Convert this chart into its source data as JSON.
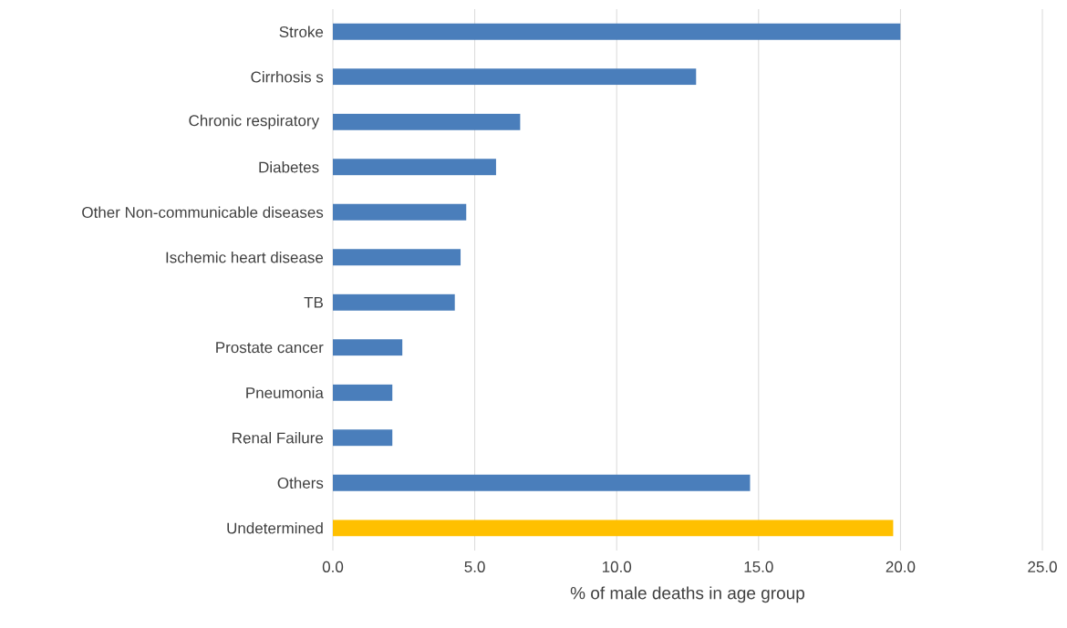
{
  "chart_data": {
    "type": "bar",
    "orientation": "horizontal",
    "xlabel": "% of male deaths in age group",
    "categories": [
      "Stroke",
      "Cirrhosis s",
      "Chronic respiratory ",
      "Diabetes ",
      "Other Non-communicable diseases",
      "Ischemic heart disease",
      "TB",
      "Prostate cancer",
      "Pneumonia",
      "Renal Failure",
      "Others",
      "Undetermined"
    ],
    "values": [
      20.0,
      12.8,
      6.6,
      5.75,
      4.7,
      4.5,
      4.3,
      2.45,
      2.1,
      2.1,
      14.7,
      19.75
    ],
    "colors": [
      "#4a7ebb",
      "#4a7ebb",
      "#4a7ebb",
      "#4a7ebb",
      "#4a7ebb",
      "#4a7ebb",
      "#4a7ebb",
      "#4a7ebb",
      "#4a7ebb",
      "#4a7ebb",
      "#4a7ebb",
      "#ffc000"
    ],
    "xlim": [
      0,
      25
    ],
    "xticks": [
      {
        "value": 0,
        "label": "0.0"
      },
      {
        "value": 5,
        "label": "5.0"
      },
      {
        "value": 10,
        "label": "10.0"
      },
      {
        "value": 15,
        "label": "15.0"
      },
      {
        "value": 20,
        "label": "20.0"
      },
      {
        "value": 25,
        "label": "25.0"
      }
    ],
    "grid": "x"
  }
}
